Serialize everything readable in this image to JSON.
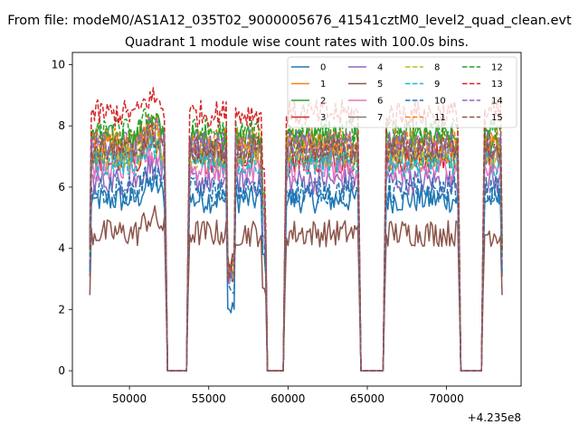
{
  "figure": {
    "suptitle": "From file: modeM0/AS1A12_035T02_9000005676_41541cztM0_level2_quad_clean.evt",
    "title": "Quadrant 1 module wise count rates with 100.0s bins.",
    "x_offset_label": "+4.235e8"
  },
  "chart_data": {
    "type": "line",
    "title": "Quadrant 1 module wise count rates with 100.0s bins.",
    "xlabel": "",
    "ylabel": "",
    "x_offset": 423500000,
    "xlim": [
      46400,
      74700
    ],
    "ylim": [
      -0.5,
      10.4
    ],
    "x_ticks": [
      50000,
      55000,
      60000,
      65000,
      70000
    ],
    "x_tick_labels": [
      "50000",
      "55000",
      "60000",
      "65000",
      "70000"
    ],
    "y_ticks": [
      0,
      2,
      4,
      6,
      8,
      10
    ],
    "y_tick_labels": [
      "0",
      "2",
      "4",
      "6",
      "8",
      "10"
    ],
    "grid": false,
    "legend": {
      "placement": "top-right",
      "columns": 4
    },
    "active_segments": [
      [
        47500,
        52300
      ],
      [
        53700,
        58600
      ],
      [
        59800,
        64500
      ],
      [
        66100,
        70800
      ],
      [
        72300,
        73500
      ]
    ],
    "series": [
      {
        "name": "0",
        "color": "#1f77b4",
        "dash": "solid",
        "level": 5.6,
        "dip": 2.0
      },
      {
        "name": "1",
        "color": "#ff7f0e",
        "dash": "solid",
        "level": 7.3,
        "dip": 3.3
      },
      {
        "name": "2",
        "color": "#2ca02c",
        "dash": "solid",
        "level": 7.6,
        "dip": 3.4
      },
      {
        "name": "3",
        "color": "#d62728",
        "dash": "solid",
        "level": 6.9,
        "dip": 3.2
      },
      {
        "name": "4",
        "color": "#9467bd",
        "dash": "solid",
        "level": 6.2,
        "dip": 3.0
      },
      {
        "name": "5",
        "color": "#8c564b",
        "dash": "solid",
        "level": 4.5,
        "dip": 3.6
      },
      {
        "name": "6",
        "color": "#e377c2",
        "dash": "solid",
        "level": 6.6,
        "dip": 3.1
      },
      {
        "name": "7",
        "color": "#7f7f7f",
        "dash": "solid",
        "level": 7.1,
        "dip": 3.2
      },
      {
        "name": "8",
        "color": "#bcbd22",
        "dash": "dashed",
        "level": 7.0,
        "dip": 3.2
      },
      {
        "name": "9",
        "color": "#17becf",
        "dash": "dashed",
        "level": 6.8,
        "dip": 3.1
      },
      {
        "name": "10",
        "color": "#1f77b4",
        "dash": "dashed",
        "level": 5.9,
        "dip": 2.6
      },
      {
        "name": "11",
        "color": "#ff7f0e",
        "dash": "dashed",
        "level": 7.5,
        "dip": 3.3
      },
      {
        "name": "12",
        "color": "#2ca02c",
        "dash": "dashed",
        "level": 7.8,
        "dip": 3.4
      },
      {
        "name": "13",
        "color": "#d62728",
        "dash": "dashed",
        "level": 8.4,
        "dip": 3.5
      },
      {
        "name": "14",
        "color": "#9467bd",
        "dash": "dashed",
        "level": 7.4,
        "dip": 3.2
      },
      {
        "name": "15",
        "color": "#8c564b",
        "dash": "dashed",
        "level": 7.2,
        "dip": 3.1
      }
    ]
  }
}
